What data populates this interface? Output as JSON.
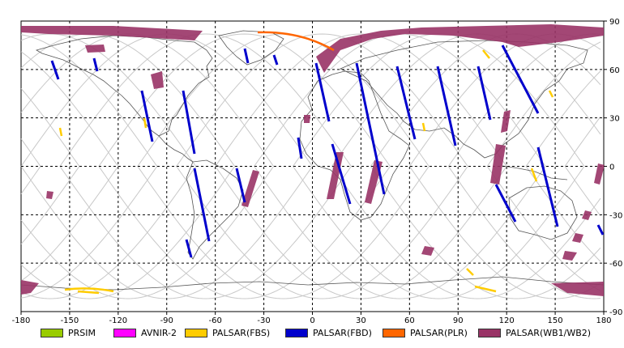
{
  "map": {
    "lon_ticks": [
      "-180",
      "-150",
      "-120",
      "-90",
      "-60",
      "-30",
      "0",
      "30",
      "60",
      "90",
      "120",
      "150",
      "180"
    ],
    "lat_ticks": [
      "90",
      "60",
      "30",
      "0",
      "-30",
      "-60",
      "-90"
    ],
    "colors": {
      "land_outline": "#555555",
      "orbit_tracks": "#c8c8c8",
      "grid": "#000000",
      "PRSIM": "#99cc00",
      "AVNIR-2": "#ff00ff",
      "PALSAR(FBS)": "#ffcc00",
      "PALSAR(FBD)": "#0000cc",
      "PALSAR(PLR)": "#ff6600",
      "PALSAR(WB1/WB2)": "#993366"
    }
  },
  "legend": [
    {
      "label": "PRSIM",
      "color": "#99cc00"
    },
    {
      "label": "AVNIR-2",
      "color": "#ff00ff"
    },
    {
      "label": "PALSAR(FBS)",
      "color": "#ffcc00"
    },
    {
      "label": "PALSAR(FBD)",
      "color": "#0000cc"
    },
    {
      "label": "PALSAR(PLR)",
      "color": "#ff6600"
    },
    {
      "label": "PALSAR(WB1/WB2)",
      "color": "#993366"
    }
  ]
}
